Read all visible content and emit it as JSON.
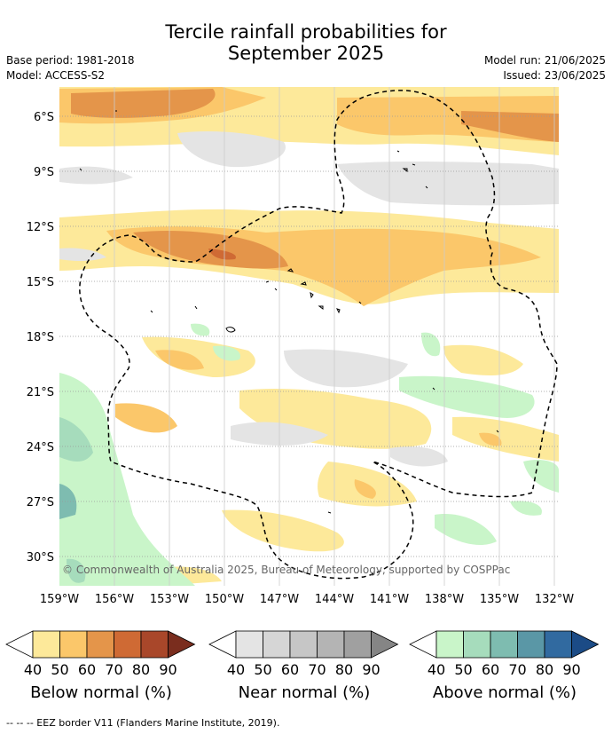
{
  "title_line1": "Tercile rainfall probabilities for",
  "title_line2": "September 2025",
  "meta_left": {
    "base_period": "Base period: 1981-2018",
    "model": "Model: ACCESS-S2"
  },
  "meta_right": {
    "model_run": "Model run: 21/06/2025",
    "issued": "Issued: 23/06/2025"
  },
  "copyright": "© Commonwealth of Australia 2025, Bureau of Meteorology, supported by COSPPac",
  "lat_labels": [
    "6°S",
    "9°S",
    "12°S",
    "15°S",
    "18°S",
    "21°S",
    "24°S",
    "27°S",
    "30°S"
  ],
  "lon_labels": [
    "159°W",
    "156°W",
    "153°W",
    "150°W",
    "147°W",
    "144°W",
    "141°W",
    "138°W",
    "135°W",
    "132°W"
  ],
  "legends": [
    {
      "name": "Below normal (%)",
      "ticks": [
        "40",
        "50",
        "60",
        "70",
        "80",
        "90"
      ],
      "colors": [
        "#fde99a",
        "#fbc76a",
        "#e4954a",
        "#cf6a34",
        "#a9472a",
        "#7a2d1e"
      ]
    },
    {
      "name": "Near normal (%)",
      "ticks": [
        "40",
        "50",
        "60",
        "70",
        "80",
        "90"
      ],
      "colors": [
        "#e4e4e4",
        "#d6d6d6",
        "#c6c6c6",
        "#b4b4b4",
        "#a0a0a0",
        "#858585"
      ]
    },
    {
      "name": "Above normal (%)",
      "ticks": [
        "40",
        "50",
        "60",
        "70",
        "80",
        "90"
      ],
      "colors": [
        "#c9f5c9",
        "#a6dcbc",
        "#7ebcb0",
        "#5a97a6",
        "#316aa0",
        "#1b4b86"
      ]
    }
  ],
  "footer": "--  --  -- EEZ border V11 (Flanders Marine Institute, 2019)."
}
